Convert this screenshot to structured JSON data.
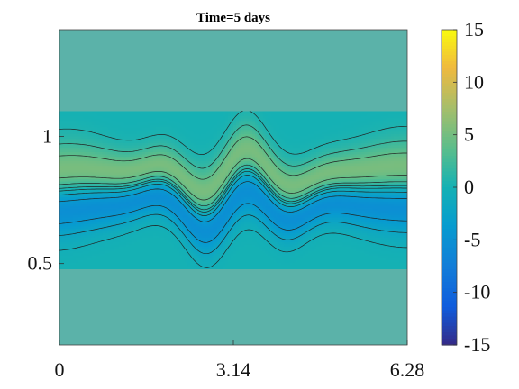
{
  "chart_data": {
    "type": "heatmap",
    "title": "Time=5 days",
    "xlabel": "",
    "ylabel": "",
    "xlim": [
      0,
      6.28
    ],
    "ylim": [
      0.18,
      1.42
    ],
    "x_ticks": [
      0,
      3.14,
      6.28
    ],
    "x_tick_labels": [
      "0",
      "3.14",
      "6.28"
    ],
    "y_ticks": [
      0.5,
      1
    ],
    "y_tick_labels": [
      "0.5",
      "1"
    ],
    "colorbar": {
      "range": [
        -15,
        15
      ],
      "ticks": [
        -15,
        -10,
        -5,
        0,
        5,
        10,
        15
      ],
      "tick_labels": [
        "-15",
        "-10",
        "-5",
        "0",
        "5",
        "10",
        "15"
      ],
      "colormap": "parula"
    },
    "background_value": 0,
    "band_center_y": 0.79,
    "band": {
      "positive_peak_y": 0.88,
      "negative_peak_y": 0.68,
      "max_value": 11,
      "min_value": -11,
      "wave_center_x": 3.1
    },
    "contour_levels": [
      -12,
      -10,
      -8,
      -6,
      -4,
      -2,
      -0.5,
      0.5,
      2,
      4,
      6,
      8,
      10
    ]
  },
  "colors": {
    "background_field": "#5bb2a9",
    "positive_peak": "#f0b93e",
    "negative_peak": "#2c5fe0",
    "contour_line": "#222222"
  }
}
